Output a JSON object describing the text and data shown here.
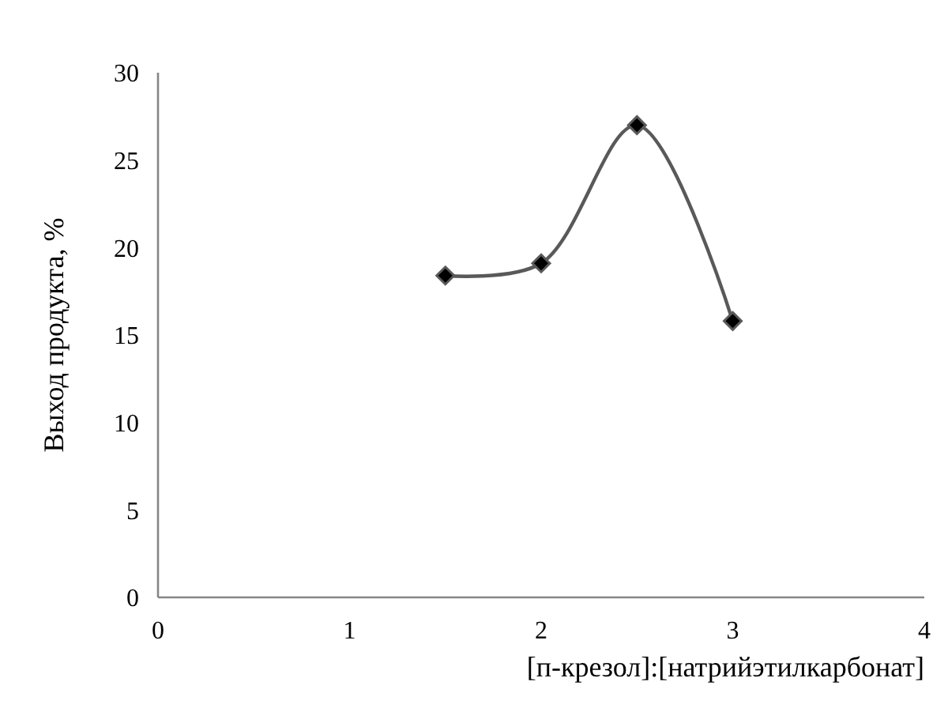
{
  "chart_data": {
    "type": "line",
    "xlabel": "[п-крезол]:[натрийэтилкарбонат]",
    "ylabel": "Выход продукта, %",
    "x": [
      1.5,
      2,
      2.5,
      3
    ],
    "series": [
      {
        "color": "#595959",
        "values": [
          18.4,
          19.1,
          27,
          15.8
        ]
      }
    ],
    "xlim": [
      0,
      4
    ],
    "xticks": [
      0,
      1,
      2,
      3,
      4
    ],
    "ylim": [
      0,
      30
    ],
    "yticks": [
      0,
      5,
      10,
      15,
      20,
      25,
      30
    ],
    "marker": "diamond",
    "line_style": "solid"
  }
}
